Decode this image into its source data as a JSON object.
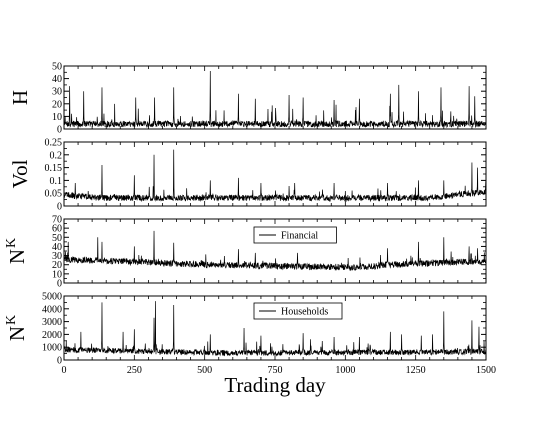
{
  "chart_data": {
    "type": "line",
    "xlabel": "Trading day",
    "xlim": [
      0,
      1500
    ],
    "xticks": [
      0,
      250,
      500,
      750,
      1000,
      1250,
      1500
    ],
    "panels": [
      {
        "ylabel": "H",
        "ylabel_sup": "",
        "ylim": [
          0,
          50
        ],
        "yticks": [
          0,
          10,
          20,
          30,
          40,
          50
        ],
        "legend": "",
        "baseline": {
          "base": 4,
          "noise": 2.5,
          "drift": [],
          "spike_prob": 0.04,
          "spike_scale": 14
        },
        "peaks": [
          [
            20,
            34
          ],
          [
            70,
            30
          ],
          [
            135,
            33
          ],
          [
            255,
            25
          ],
          [
            322,
            25
          ],
          [
            390,
            33
          ],
          [
            520,
            46
          ],
          [
            620,
            28
          ],
          [
            680,
            24
          ],
          [
            800,
            27
          ],
          [
            850,
            25
          ],
          [
            960,
            23
          ],
          [
            1050,
            24
          ],
          [
            1160,
            28
          ],
          [
            1190,
            35
          ],
          [
            1260,
            30
          ],
          [
            1340,
            33
          ],
          [
            1440,
            34
          ],
          [
            1460,
            26
          ]
        ]
      },
      {
        "ylabel": "Vol",
        "ylabel_sup": "",
        "ylim": [
          0,
          0.25
        ],
        "yticks": [
          0,
          0.05,
          0.1,
          0.15,
          0.2,
          0.25
        ],
        "legend": "",
        "baseline": {
          "base": 0.032,
          "noise": 0.012,
          "drift": [
            [
              0,
              0.012
            ],
            [
              120,
              0
            ],
            [
              1300,
              0
            ],
            [
              1500,
              0.025
            ]
          ],
          "spike_prob": 0.03,
          "spike_scale": 0.04
        },
        "peaks": [
          [
            40,
            0.09
          ],
          [
            135,
            0.16
          ],
          [
            250,
            0.12
          ],
          [
            320,
            0.2
          ],
          [
            390,
            0.22
          ],
          [
            520,
            0.1
          ],
          [
            620,
            0.11
          ],
          [
            700,
            0.09
          ],
          [
            820,
            0.09
          ],
          [
            960,
            0.09
          ],
          [
            1150,
            0.09
          ],
          [
            1260,
            0.1
          ],
          [
            1350,
            0.1
          ],
          [
            1450,
            0.17
          ],
          [
            1470,
            0.15
          ]
        ]
      },
      {
        "ylabel": "N",
        "ylabel_sup": "K",
        "ylim": [
          0,
          70
        ],
        "yticks": [
          0,
          10,
          20,
          30,
          40,
          50,
          60,
          70
        ],
        "legend": "Financial",
        "baseline": {
          "base": 20,
          "noise": 3.5,
          "drift": [
            [
              0,
              6
            ],
            [
              350,
              2
            ],
            [
              500,
              0
            ],
            [
              1050,
              -3
            ],
            [
              1150,
              0
            ],
            [
              1500,
              4
            ]
          ],
          "spike_prob": 0.03,
          "spike_scale": 10
        },
        "peaks": [
          [
            15,
            45
          ],
          [
            120,
            50
          ],
          [
            135,
            45
          ],
          [
            250,
            40
          ],
          [
            320,
            57
          ],
          [
            390,
            44
          ],
          [
            620,
            37
          ],
          [
            680,
            33
          ],
          [
            830,
            33
          ],
          [
            1150,
            38
          ],
          [
            1260,
            45
          ],
          [
            1350,
            50
          ],
          [
            1440,
            40
          ],
          [
            1470,
            38
          ]
        ]
      },
      {
        "ylabel": "N",
        "ylabel_sup": "K",
        "ylim": [
          0,
          5000
        ],
        "yticks": [
          0,
          1000,
          2000,
          3000,
          4000,
          5000
        ],
        "legend": "Households",
        "baseline": {
          "base": 550,
          "noise": 220,
          "drift": [
            [
              0,
              250
            ],
            [
              600,
              0
            ],
            [
              1500,
              100
            ]
          ],
          "spike_prob": 0.035,
          "spike_scale": 900
        },
        "peaks": [
          [
            60,
            2200
          ],
          [
            135,
            4500
          ],
          [
            210,
            2200
          ],
          [
            250,
            2400
          ],
          [
            320,
            3300
          ],
          [
            325,
            4600
          ],
          [
            390,
            4300
          ],
          [
            520,
            2000
          ],
          [
            640,
            2500
          ],
          [
            700,
            1900
          ],
          [
            850,
            2100
          ],
          [
            960,
            1800
          ],
          [
            1050,
            1800
          ],
          [
            1160,
            2200
          ],
          [
            1200,
            2000
          ],
          [
            1270,
            1900
          ],
          [
            1310,
            2000
          ],
          [
            1350,
            3800
          ],
          [
            1450,
            3100
          ],
          [
            1475,
            2600
          ]
        ]
      }
    ]
  }
}
